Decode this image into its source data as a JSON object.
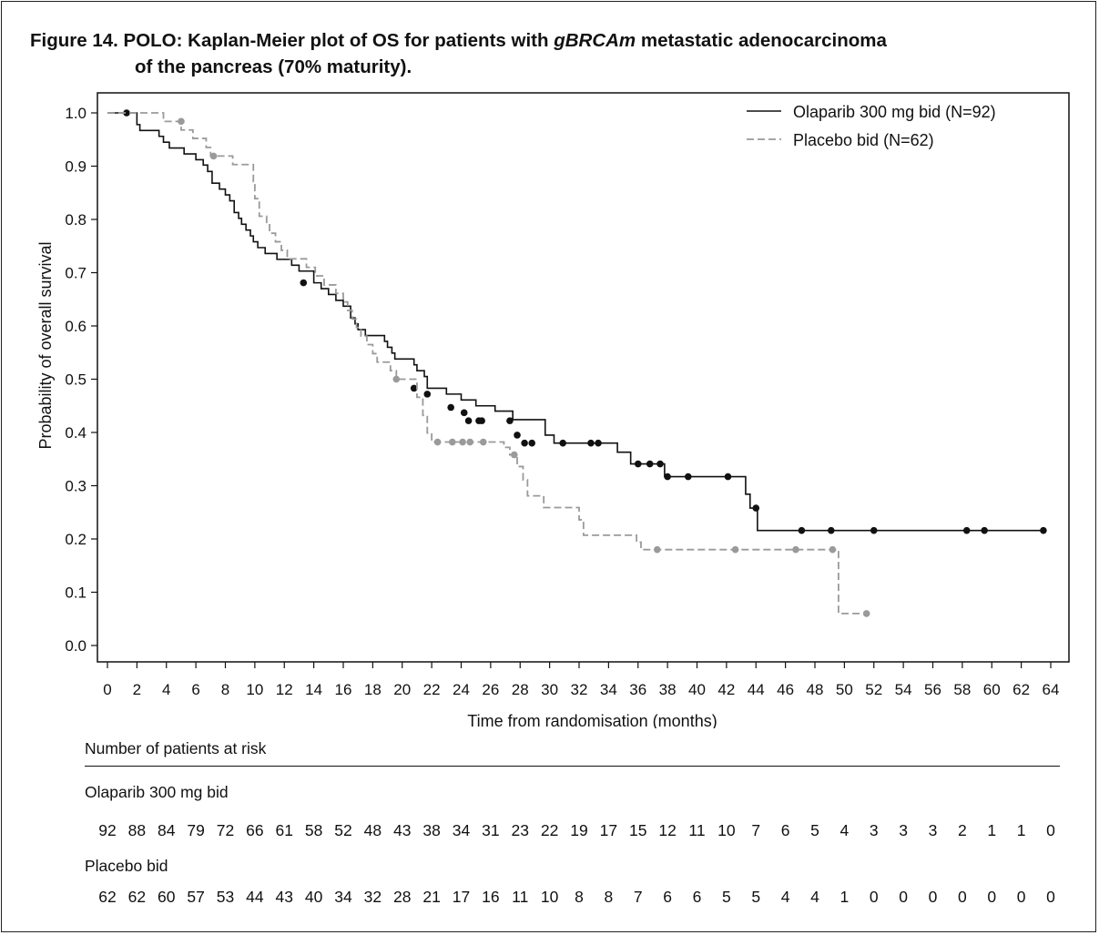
{
  "title": {
    "line1_prefix": "Figure 14. POLO: Kaplan-Meier plot of OS for patients with ",
    "line1_italic": "gBRCAm",
    "line1_suffix": " metastatic adenocarcinoma",
    "line2": "of the pancreas (70% maturity)."
  },
  "chart_data": {
    "type": "line",
    "subtype": "kaplan-meier step",
    "xlabel": "Time from randomisation (months)",
    "ylabel": "Probability of overall survival",
    "xlim": [
      0,
      64
    ],
    "ylim": [
      0,
      1
    ],
    "x_ticks": [
      "0",
      "2",
      "4",
      "6",
      "8",
      "10",
      "12",
      "14",
      "16",
      "18",
      "20",
      "22",
      "24",
      "26",
      "28",
      "30",
      "32",
      "34",
      "36",
      "38",
      "40",
      "42",
      "44",
      "46",
      "48",
      "50",
      "52",
      "54",
      "56",
      "58",
      "60",
      "62",
      "64"
    ],
    "y_ticks": [
      "0.0",
      "0.1",
      "0.2",
      "0.3",
      "0.4",
      "0.5",
      "0.6",
      "0.7",
      "0.8",
      "0.9",
      "1.0"
    ],
    "legend_position": "top-right",
    "grid": false,
    "series": [
      {
        "name": "Olaparib 300 mg bid (N=92)",
        "color": "#111111",
        "line_style": "solid",
        "steps": [
          [
            0,
            1.0
          ],
          [
            2,
            0.978
          ],
          [
            2.2,
            0.967
          ],
          [
            3.5,
            0.956
          ],
          [
            3.8,
            0.945
          ],
          [
            4.2,
            0.934
          ],
          [
            5.2,
            0.923
          ],
          [
            6,
            0.912
          ],
          [
            6.5,
            0.902
          ],
          [
            6.8,
            0.89
          ],
          [
            7.1,
            0.868
          ],
          [
            7.6,
            0.857
          ],
          [
            8,
            0.846
          ],
          [
            8.3,
            0.835
          ],
          [
            8.6,
            0.813
          ],
          [
            8.9,
            0.802
          ],
          [
            9.1,
            0.791
          ],
          [
            9.4,
            0.78
          ],
          [
            9.7,
            0.769
          ],
          [
            9.9,
            0.758
          ],
          [
            10.2,
            0.747
          ],
          [
            10.7,
            0.736
          ],
          [
            11.5,
            0.725
          ],
          [
            12.5,
            0.714
          ],
          [
            13,
            0.703
          ],
          [
            14,
            0.681
          ],
          [
            14.5,
            0.67
          ],
          [
            15,
            0.659
          ],
          [
            15.5,
            0.648
          ],
          [
            16,
            0.637
          ],
          [
            16.5,
            0.615
          ],
          [
            16.8,
            0.604
          ],
          [
            17,
            0.593
          ],
          [
            17.5,
            0.582
          ],
          [
            18.8,
            0.571
          ],
          [
            19,
            0.56
          ],
          [
            19.3,
            0.549
          ],
          [
            19.5,
            0.538
          ],
          [
            20.8,
            0.527
          ],
          [
            21,
            0.516
          ],
          [
            21.5,
            0.505
          ],
          [
            21.7,
            0.483
          ],
          [
            23,
            0.472
          ],
          [
            24,
            0.461
          ],
          [
            25,
            0.45
          ],
          [
            26.3,
            0.44
          ],
          [
            27.5,
            0.424
          ],
          [
            29.7,
            0.395
          ],
          [
            30.3,
            0.38
          ],
          [
            34.6,
            0.363
          ],
          [
            35.5,
            0.341
          ],
          [
            37.8,
            0.317
          ],
          [
            43.3,
            0.284
          ],
          [
            43.6,
            0.258
          ],
          [
            44.1,
            0.216
          ]
        ],
        "end_x": 63.5,
        "censored": [
          [
            1.3,
            1.0
          ],
          [
            13.3,
            0.681
          ],
          [
            20.8,
            0.483
          ],
          [
            21.7,
            0.472
          ],
          [
            23.3,
            0.447
          ],
          [
            24.2,
            0.437
          ],
          [
            24.5,
            0.422
          ],
          [
            25.2,
            0.422
          ],
          [
            25.4,
            0.422
          ],
          [
            27.3,
            0.422
          ],
          [
            27.8,
            0.395
          ],
          [
            28.3,
            0.38
          ],
          [
            28.8,
            0.38
          ],
          [
            30.9,
            0.38
          ],
          [
            32.8,
            0.38
          ],
          [
            33.3,
            0.38
          ],
          [
            36.0,
            0.341
          ],
          [
            36.8,
            0.341
          ],
          [
            37.5,
            0.341
          ],
          [
            38.0,
            0.317
          ],
          [
            39.4,
            0.317
          ],
          [
            42.1,
            0.317
          ],
          [
            44.0,
            0.258
          ],
          [
            47.1,
            0.216
          ],
          [
            49.1,
            0.216
          ],
          [
            52.0,
            0.216
          ],
          [
            58.3,
            0.216
          ],
          [
            59.5,
            0.216
          ],
          [
            63.5,
            0.216
          ]
        ]
      },
      {
        "name": "Placebo bid (N=62)",
        "color": "#9a9a9a",
        "line_style": "dashed",
        "steps": [
          [
            0,
            1.0
          ],
          [
            3.8,
            0.984
          ],
          [
            5,
            0.968
          ],
          [
            5.8,
            0.952
          ],
          [
            6.7,
            0.935
          ],
          [
            7,
            0.919
          ],
          [
            8.5,
            0.903
          ],
          [
            9.9,
            0.871
          ],
          [
            10,
            0.839
          ],
          [
            10.3,
            0.806
          ],
          [
            10.8,
            0.79
          ],
          [
            11,
            0.774
          ],
          [
            11.4,
            0.758
          ],
          [
            11.8,
            0.742
          ],
          [
            12.2,
            0.726
          ],
          [
            13.5,
            0.71
          ],
          [
            14.1,
            0.694
          ],
          [
            14.7,
            0.677
          ],
          [
            15.5,
            0.661
          ],
          [
            16,
            0.645
          ],
          [
            16.3,
            0.629
          ],
          [
            16.6,
            0.613
          ],
          [
            16.9,
            0.597
          ],
          [
            17.2,
            0.581
          ],
          [
            17.6,
            0.565
          ],
          [
            18,
            0.548
          ],
          [
            18.3,
            0.532
          ],
          [
            19.2,
            0.516
          ],
          [
            19.6,
            0.5
          ],
          [
            21,
            0.466
          ],
          [
            21.4,
            0.432
          ],
          [
            21.7,
            0.399
          ],
          [
            22,
            0.382
          ],
          [
            26.9,
            0.372
          ],
          [
            27.3,
            0.358
          ],
          [
            27.8,
            0.336
          ],
          [
            28.2,
            0.311
          ],
          [
            28.5,
            0.281
          ],
          [
            29.6,
            0.259
          ],
          [
            32,
            0.236
          ],
          [
            32.3,
            0.207
          ],
          [
            35.9,
            0.194
          ],
          [
            36.2,
            0.18
          ],
          [
            49.6,
            0.06
          ]
        ],
        "end_x": 51.5,
        "censored": [
          [
            5,
            0.984
          ],
          [
            7.2,
            0.919
          ],
          [
            19.6,
            0.5
          ],
          [
            22.4,
            0.382
          ],
          [
            23.4,
            0.382
          ],
          [
            24.1,
            0.382
          ],
          [
            24.6,
            0.382
          ],
          [
            25.5,
            0.382
          ],
          [
            27.6,
            0.358
          ],
          [
            37.3,
            0.18
          ],
          [
            42.6,
            0.18
          ],
          [
            46.7,
            0.18
          ],
          [
            49.2,
            0.18
          ],
          [
            51.5,
            0.06
          ]
        ]
      }
    ]
  },
  "risk_table": {
    "header": "Number of patients at risk",
    "olaparib": {
      "label": "Olaparib 300 mg bid",
      "values": [
        "92",
        "88",
        "84",
        "79",
        "72",
        "66",
        "61",
        "58",
        "52",
        "48",
        "43",
        "38",
        "34",
        "31",
        "23",
        "22",
        "19",
        "17",
        "15",
        "12",
        "11",
        "10",
        "7",
        "6",
        "5",
        "4",
        "3",
        "3",
        "3",
        "2",
        "1",
        "1",
        "0"
      ]
    },
    "placebo": {
      "label": "Placebo bid",
      "values": [
        "62",
        "62",
        "60",
        "57",
        "53",
        "44",
        "43",
        "40",
        "34",
        "32",
        "28",
        "21",
        "17",
        "16",
        "11",
        "10",
        "8",
        "8",
        "7",
        "6",
        "6",
        "5",
        "5",
        "4",
        "4",
        "1",
        "0",
        "0",
        "0",
        "0",
        "0",
        "0",
        "0"
      ]
    }
  }
}
